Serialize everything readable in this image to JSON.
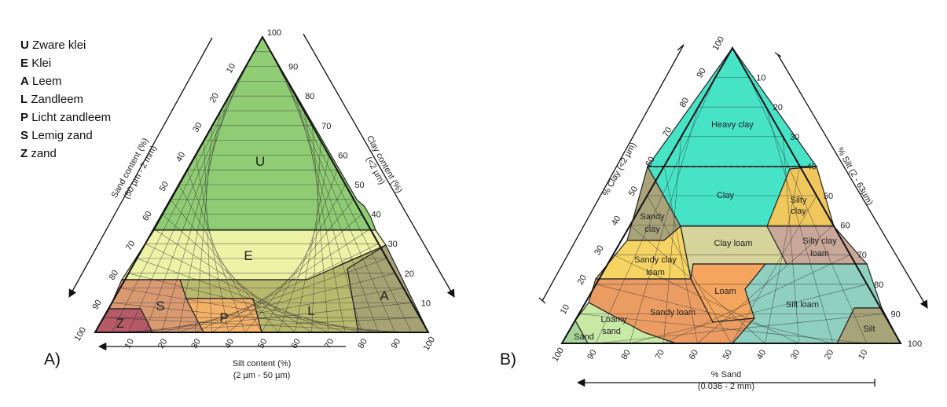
{
  "legend": {
    "items": [
      {
        "code": "U",
        "label": "Zware klei"
      },
      {
        "code": "E",
        "label": "Klei"
      },
      {
        "code": "A",
        "label": "Leem"
      },
      {
        "code": "L",
        "label": "Zandleem"
      },
      {
        "code": "P",
        "label": "Licht zandleem"
      },
      {
        "code": "S",
        "label": "Lemig zand"
      },
      {
        "code": "Z",
        "label": "zand"
      }
    ]
  },
  "panel_a": {
    "tag": "A)",
    "sand_label": [
      "Sand content (%)",
      "(50 µm - 2 mm)"
    ],
    "clay_label": [
      "Clay content (%)",
      "(<2 µm)"
    ],
    "silt_label": [
      "Silt content (%)",
      "(2 µm - 50 µm)"
    ],
    "sand_ticks": [
      "10",
      "20",
      "30",
      "40",
      "50",
      "60",
      "70",
      "80",
      "90",
      "100"
    ],
    "clay_ticks": [
      "100",
      "90",
      "80",
      "70",
      "60",
      "50",
      "40",
      "30",
      "20",
      "10"
    ],
    "silt_ticks": [
      "10",
      "20",
      "30",
      "40",
      "50",
      "60",
      "70",
      "80",
      "90",
      "100"
    ],
    "regions": [
      {
        "code": "U",
        "color": "#8fcc74"
      },
      {
        "code": "E",
        "color": "#ecf2a6"
      },
      {
        "code": "A",
        "color": "#a6a273"
      },
      {
        "code": "L",
        "color": "#b9b96e"
      },
      {
        "code": "P",
        "color": "#f4b268"
      },
      {
        "code": "S",
        "color": "#d99a72"
      },
      {
        "code": "Z",
        "color": "#b65a68"
      }
    ]
  },
  "panel_b": {
    "tag": "B)",
    "clay_label": "% Clay (<2 µm)",
    "silt_label": "% Silt (2 - 63µm)",
    "sand_label": [
      "% Sand",
      "(0.036 - 2 mm)"
    ],
    "clay_ticks": [
      "100",
      "90",
      "80",
      "70",
      "60",
      "50",
      "40",
      "30",
      "20",
      "10"
    ],
    "silt_ticks": [
      "10",
      "20",
      "30",
      "40",
      "50",
      "60",
      "70",
      "80",
      "90",
      "100"
    ],
    "sand_ticks": [
      "100",
      "90",
      "80",
      "70",
      "60",
      "50",
      "40",
      "30",
      "20",
      "10"
    ],
    "regions": [
      {
        "name": "Heavy clay",
        "color": "#46e3c6"
      },
      {
        "name": "Clay",
        "color": "#46e3c6"
      },
      {
        "name": "Silty clay",
        "color": "#f0c75c"
      },
      {
        "name": "Sandy clay",
        "color": "#a9a37a"
      },
      {
        "name": "Clay loam",
        "color": "#d6d49a"
      },
      {
        "name": "Silty clay loam",
        "color": "#c9a89a"
      },
      {
        "name": "Sandy clay loam",
        "color": "#f6d463"
      },
      {
        "name": "Loam",
        "color": "#f4a55e"
      },
      {
        "name": "Sandy loam",
        "color": "#ea9c62"
      },
      {
        "name": "Silt loam",
        "color": "#8fd0c0"
      },
      {
        "name": "Loamy sand",
        "color": "#c8e8a6"
      },
      {
        "name": "Sand",
        "color": "#a7d49a"
      },
      {
        "name": "Silt",
        "color": "#a8a47a"
      }
    ]
  }
}
